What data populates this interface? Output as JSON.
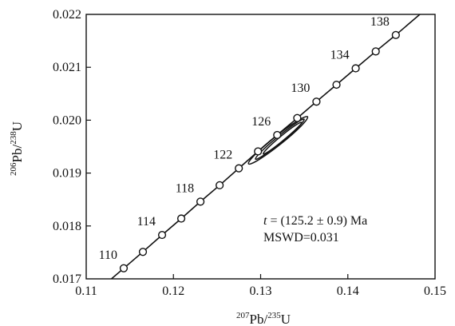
{
  "chart_data": {
    "type": "scatter",
    "title": "",
    "xlabel": {
      "mass_top": "207",
      "el_top": "Pb/",
      "mass_bottom": "235",
      "el_bottom": "U"
    },
    "ylabel": {
      "mass_top": "206",
      "el_top": "Pb/",
      "mass_bottom": "238",
      "el_bottom": "U"
    },
    "xlim": [
      0.11,
      0.15
    ],
    "ylim": [
      0.017,
      0.022
    ],
    "x_ticks": [
      "0.11",
      "0.12",
      "0.13",
      "0.14",
      "0.15"
    ],
    "y_ticks": [
      "0.017",
      "0.018",
      "0.019",
      "0.020",
      "0.021",
      "0.022"
    ],
    "grid": false,
    "concordia": [
      {
        "age": 110,
        "x": 0.1143,
        "y": 0.0172,
        "labeled": true
      },
      {
        "age": 112,
        "x": 0.1165,
        "y": 0.01751,
        "labeled": false
      },
      {
        "age": 114,
        "x": 0.1187,
        "y": 0.01783,
        "labeled": true
      },
      {
        "age": 116,
        "x": 0.1209,
        "y": 0.01814,
        "labeled": false
      },
      {
        "age": 118,
        "x": 0.1231,
        "y": 0.01846,
        "labeled": true
      },
      {
        "age": 120,
        "x": 0.1253,
        "y": 0.01877,
        "labeled": false
      },
      {
        "age": 122,
        "x": 0.1275,
        "y": 0.01909,
        "labeled": true
      },
      {
        "age": 124,
        "x": 0.1297,
        "y": 0.01941,
        "labeled": false
      },
      {
        "age": 126,
        "x": 0.1319,
        "y": 0.01972,
        "labeled": true
      },
      {
        "age": 128,
        "x": 0.1342,
        "y": 0.02004,
        "labeled": false
      },
      {
        "age": 130,
        "x": 0.1364,
        "y": 0.02035,
        "labeled": true
      },
      {
        "age": 132,
        "x": 0.1387,
        "y": 0.02067,
        "labeled": false
      },
      {
        "age": 134,
        "x": 0.1409,
        "y": 0.02098,
        "labeled": true
      },
      {
        "age": 136,
        "x": 0.1432,
        "y": 0.0213,
        "labeled": false
      },
      {
        "age": 138,
        "x": 0.1455,
        "y": 0.02161,
        "labeled": true
      }
    ],
    "error_ellipses": [
      {
        "cx": 0.132,
        "cy": 0.01962,
        "sx": 0.0034,
        "sy": 0.00045,
        "rho": 0.97
      },
      {
        "cx": 0.1322,
        "cy": 0.01964,
        "sx": 0.0028,
        "sy": 0.00038,
        "rho": 0.98
      },
      {
        "cx": 0.1325,
        "cy": 0.01966,
        "sx": 0.0022,
        "sy": 0.0003,
        "rho": 0.98
      }
    ],
    "annotations": [
      "t = (125.2 ± 0.9) Ma",
      "MSWD=0.031"
    ]
  }
}
